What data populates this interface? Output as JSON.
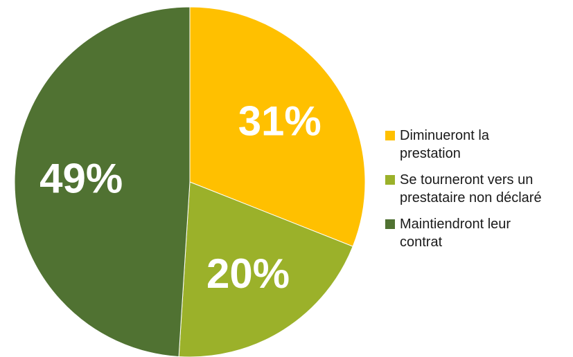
{
  "chart_data": {
    "type": "pie",
    "title": "",
    "legend_position": "right",
    "slices": [
      {
        "label": "Diminueront la\nprestation",
        "value": 31,
        "value_label": "31%",
        "color": "#FFC000"
      },
      {
        "label": "Se tourneront vers un\nprestataire non déclaré",
        "value": 20,
        "value_label": "20%",
        "color": "#9BB12A"
      },
      {
        "label": "Maintiendront leur\ncontrat",
        "value": 49,
        "value_label": "49%",
        "color": "#507232"
      }
    ]
  }
}
